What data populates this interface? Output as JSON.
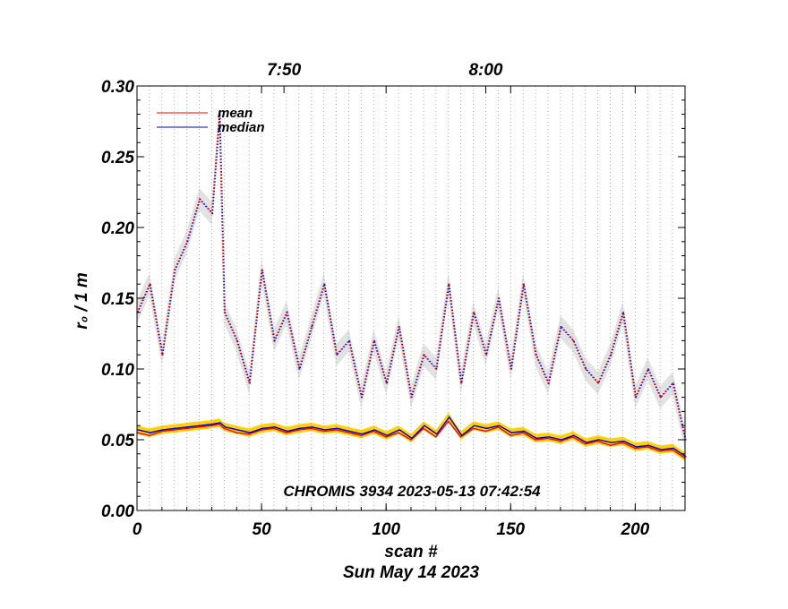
{
  "chart_data": {
    "type": "line",
    "title": "",
    "xlabel": "scan #",
    "ylabel": "r₀ / 1 m",
    "subtitle_bottom": "Sun May 14 2023",
    "annotation": "CHROMIS 3934 2023-05-13 07:42:54",
    "xlim": [
      0,
      220
    ],
    "ylim": [
      0.0,
      0.3
    ],
    "x_ticks": [
      0,
      50,
      100,
      150,
      200
    ],
    "x_tick_labels": [
      "0",
      "50",
      "100",
      "150",
      "200"
    ],
    "y_ticks": [
      0.0,
      0.05,
      0.1,
      0.15,
      0.2,
      0.25,
      0.3
    ],
    "y_tick_labels": [
      "0.00",
      "0.05",
      "0.10",
      "0.15",
      "0.20",
      "0.25",
      "0.30"
    ],
    "top_axis_labels": [
      {
        "scan": 59,
        "label": "7:50"
      },
      {
        "scan": 140,
        "label": "8:00"
      }
    ],
    "grid": "vertical dotted lines",
    "legend_position": "top-left",
    "legend": [
      {
        "name": "mean",
        "color": "#ff0000"
      },
      {
        "name": "median",
        "color": "#0000c0"
      }
    ],
    "x": [
      0,
      5,
      10,
      15,
      20,
      25,
      30,
      33,
      35,
      40,
      45,
      50,
      55,
      60,
      65,
      70,
      75,
      80,
      85,
      90,
      95,
      100,
      105,
      110,
      115,
      120,
      125,
      130,
      135,
      140,
      145,
      150,
      155,
      160,
      165,
      170,
      175,
      180,
      185,
      190,
      195,
      200,
      205,
      210,
      215,
      220
    ],
    "series": [
      {
        "name": "mean",
        "style": "dotted",
        "color": "#ff0000",
        "values": [
          0.14,
          0.16,
          0.11,
          0.17,
          0.19,
          0.22,
          0.21,
          0.28,
          0.14,
          0.12,
          0.09,
          0.17,
          0.12,
          0.14,
          0.1,
          0.13,
          0.16,
          0.11,
          0.12,
          0.08,
          0.12,
          0.09,
          0.13,
          0.08,
          0.11,
          0.1,
          0.16,
          0.09,
          0.14,
          0.11,
          0.15,
          0.1,
          0.16,
          0.11,
          0.09,
          0.13,
          0.12,
          0.1,
          0.09,
          0.11,
          0.14,
          0.08,
          0.1,
          0.08,
          0.09,
          0.05
        ]
      },
      {
        "name": "median",
        "style": "dotted",
        "color": "#0000c0",
        "values": [
          0.14,
          0.16,
          0.11,
          0.17,
          0.19,
          0.22,
          0.21,
          0.28,
          0.14,
          0.12,
          0.09,
          0.17,
          0.12,
          0.14,
          0.1,
          0.13,
          0.16,
          0.11,
          0.12,
          0.08,
          0.12,
          0.09,
          0.13,
          0.08,
          0.11,
          0.1,
          0.16,
          0.09,
          0.14,
          0.11,
          0.15,
          0.1,
          0.16,
          0.11,
          0.09,
          0.13,
          0.12,
          0.1,
          0.09,
          0.11,
          0.14,
          0.08,
          0.1,
          0.08,
          0.09,
          0.05
        ]
      },
      {
        "name": "mean",
        "style": "solid",
        "color": "#ff0000",
        "values": [
          0.055,
          0.053,
          0.056,
          0.057,
          0.058,
          0.059,
          0.06,
          0.061,
          0.058,
          0.055,
          0.054,
          0.057,
          0.058,
          0.055,
          0.057,
          0.058,
          0.056,
          0.057,
          0.055,
          0.053,
          0.056,
          0.052,
          0.055,
          0.05,
          0.058,
          0.052,
          0.063,
          0.052,
          0.058,
          0.056,
          0.059,
          0.053,
          0.055,
          0.05,
          0.051,
          0.049,
          0.052,
          0.047,
          0.049,
          0.046,
          0.048,
          0.044,
          0.045,
          0.042,
          0.043,
          0.037
        ]
      },
      {
        "name": "median",
        "style": "solid",
        "color": "#0000c0",
        "values": [
          0.057,
          0.055,
          0.057,
          0.058,
          0.059,
          0.06,
          0.061,
          0.062,
          0.059,
          0.057,
          0.055,
          0.058,
          0.059,
          0.056,
          0.058,
          0.059,
          0.057,
          0.058,
          0.056,
          0.054,
          0.057,
          0.053,
          0.057,
          0.051,
          0.06,
          0.054,
          0.066,
          0.053,
          0.06,
          0.058,
          0.06,
          0.055,
          0.056,
          0.051,
          0.052,
          0.05,
          0.053,
          0.048,
          0.05,
          0.048,
          0.049,
          0.045,
          0.046,
          0.043,
          0.044,
          0.038
        ]
      }
    ]
  }
}
